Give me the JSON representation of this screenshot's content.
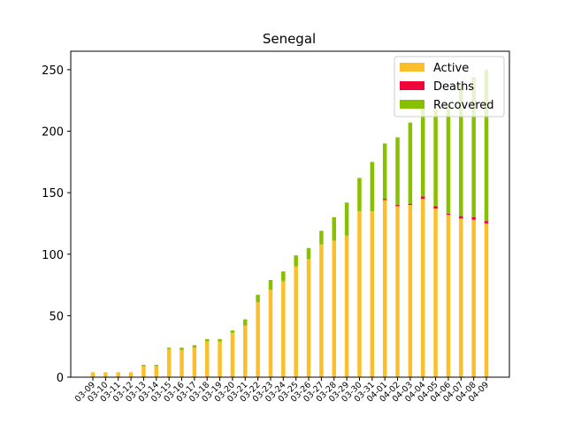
{
  "chart_data": {
    "type": "bar",
    "stacked": true,
    "title": "Senegal",
    "xlabel": "",
    "ylabel": "",
    "ylim": [
      0,
      265
    ],
    "yticks": [
      0,
      50,
      100,
      150,
      200,
      250
    ],
    "grid": false,
    "legend_position": "top-right",
    "categories": [
      "03-09",
      "03-10",
      "03-11",
      "03-12",
      "03-13",
      "03-14",
      "03-15",
      "03-16",
      "03-17",
      "03-18",
      "03-19",
      "03-20",
      "03-21",
      "03-22",
      "03-23",
      "03-24",
      "03-25",
      "03-26",
      "03-27",
      "03-28",
      "03-29",
      "03-30",
      "03-31",
      "04-01",
      "04-02",
      "04-03",
      "04-04",
      "04-05",
      "04-06",
      "04-07",
      "04-08",
      "04-09"
    ],
    "series": [
      {
        "name": "Active",
        "color": "#fbbf2b",
        "values": [
          4,
          4,
          4,
          4,
          9,
          9,
          23,
          22,
          24,
          29,
          29,
          36,
          42,
          61,
          71,
          78,
          90,
          96,
          108,
          111,
          115,
          135,
          135,
          144,
          139,
          140,
          145,
          137,
          132,
          129,
          128,
          125
        ]
      },
      {
        "name": "Deaths",
        "color": "#f0053b",
        "values": [
          0,
          0,
          0,
          0,
          0,
          0,
          0,
          0,
          0,
          0,
          0,
          0,
          0,
          0,
          0,
          0,
          0,
          0,
          0,
          0,
          0,
          0,
          0,
          1,
          1,
          1,
          2,
          2,
          1,
          2,
          2,
          2
        ]
      },
      {
        "name": "Recovered",
        "color": "#88c000",
        "values": [
          0,
          0,
          0,
          0,
          1,
          1,
          1,
          2,
          2,
          2,
          2,
          2,
          5,
          6,
          8,
          8,
          9,
          9,
          11,
          19,
          27,
          27,
          40,
          45,
          55,
          66,
          73,
          79,
          88,
          107,
          114,
          123
        ]
      }
    ]
  }
}
